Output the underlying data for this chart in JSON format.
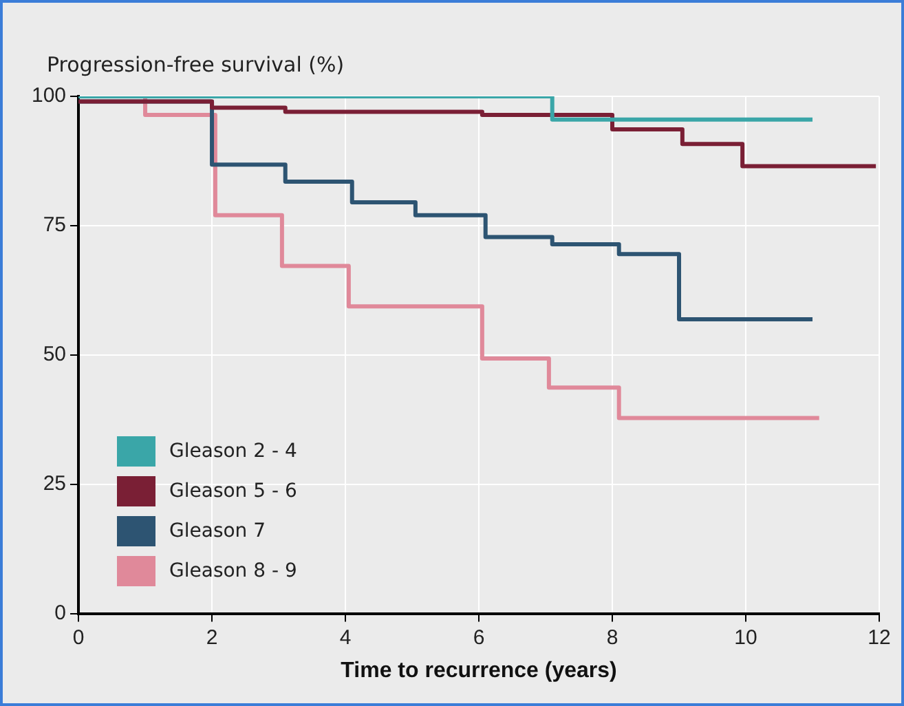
{
  "chart_data": {
    "type": "step",
    "ylabel": "Progression-free survival (%)",
    "xlabel": "Time to recurrence (years)",
    "xlim": [
      0,
      12
    ],
    "xticks": [
      0,
      2,
      4,
      6,
      8,
      10,
      12
    ],
    "ylim": [
      0,
      100
    ],
    "yticks": [
      0,
      25,
      50,
      75,
      100
    ],
    "grid": true,
    "legend": "bottom left",
    "marker": "none",
    "line_style": "solid",
    "series": [
      {
        "name": "Gleason 2 - 4",
        "color": "#3aa6a8",
        "x": [
          0,
          7.1,
          11
        ],
        "values": [
          100,
          95.5,
          95.5
        ]
      },
      {
        "name": "Gleason 5 - 6",
        "color": "#7a1f35",
        "x": [
          0,
          2,
          3.1,
          6.05,
          8,
          9.05,
          9.95,
          11.95
        ],
        "values": [
          99,
          97.8,
          97,
          96.4,
          93.6,
          90.8,
          86.5,
          86.5
        ]
      },
      {
        "name": "Gleason 7",
        "color": "#2d5472",
        "x": [
          0,
          2,
          3.1,
          4.1,
          5.05,
          6.1,
          7.1,
          8.1,
          9,
          11
        ],
        "values": [
          99,
          86.8,
          83.5,
          79.5,
          77,
          72.8,
          71.4,
          69.5,
          56.9,
          56.9
        ]
      },
      {
        "name": "Gleason 8 - 9",
        "color": "#e0899a",
        "x": [
          0,
          1,
          2.05,
          3.05,
          4.05,
          6.05,
          7.05,
          8.1,
          11.1
        ],
        "values": [
          100,
          96.4,
          77,
          67.2,
          59.4,
          49.3,
          43.7,
          37.8,
          37.8
        ]
      }
    ]
  }
}
